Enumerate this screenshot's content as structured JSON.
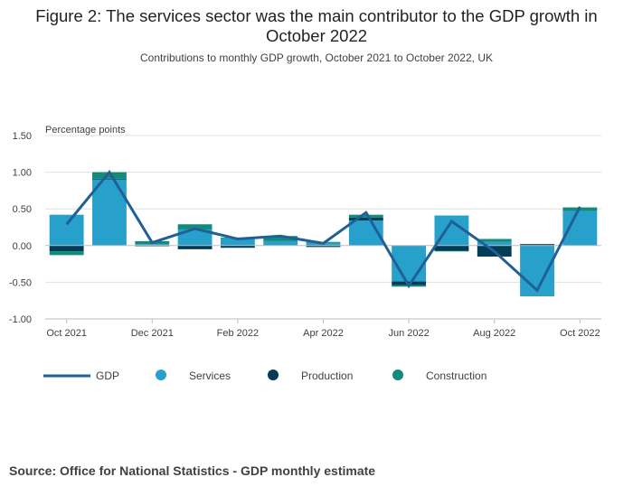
{
  "header": {
    "title": "Figure 2: The services sector was the main contributor to the GDP growth in October 2022",
    "subtitle": "Contributions to monthly GDP growth, October 2021 to October 2022, UK"
  },
  "footer": {
    "source": "Source: Office for National Statistics - GDP monthly estimate"
  },
  "colors": {
    "gdp": "#206095",
    "services": "#27a0cc",
    "production": "#003c57",
    "construction": "#118c7b",
    "grid": "#e0e0e0",
    "axis": "#bebebe"
  },
  "chart_data": {
    "type": "bar",
    "stacked": true,
    "categories": [
      "Oct 2021",
      "Nov 2021",
      "Dec 2021",
      "Jan 2022",
      "Feb 2022",
      "Mar 2022",
      "Apr 2022",
      "May 2022",
      "Jun 2022",
      "Jul 2022",
      "Aug 2022",
      "Sep 2022",
      "Oct 2022"
    ],
    "x_tick_labels": [
      "Oct 2021",
      "Dec 2021",
      "Feb 2022",
      "Apr 2022",
      "Jun 2022",
      "Aug 2022",
      "Oct 2022"
    ],
    "y_unit_label": "Percentage points",
    "ylim": [
      -1.0,
      1.5
    ],
    "yticks": [
      -1.0,
      -0.5,
      0.0,
      0.5,
      1.0,
      1.5
    ],
    "y_tick_labels": [
      "-1.00",
      "-0.50",
      "0.00",
      "0.50",
      "1.00",
      "1.50"
    ],
    "grid": true,
    "legend_position": "bottom",
    "series": [
      {
        "name": "Services",
        "kind": "bar",
        "color_key": "services",
        "values": [
          0.42,
          0.9,
          0.02,
          0.22,
          0.1,
          0.06,
          0.04,
          0.34,
          -0.49,
          0.41,
          0.05,
          -0.68,
          0.47
        ]
      },
      {
        "name": "Production",
        "kind": "bar",
        "color_key": "production",
        "values": [
          -0.08,
          0.01,
          -0.01,
          -0.05,
          -0.03,
          0.0,
          -0.02,
          0.04,
          -0.05,
          -0.07,
          -0.15,
          0.02,
          0.0
        ]
      },
      {
        "name": "Construction",
        "kind": "bar",
        "color_key": "construction",
        "values": [
          -0.05,
          0.09,
          0.04,
          0.07,
          0.01,
          0.07,
          0.01,
          0.04,
          -0.02,
          -0.01,
          0.04,
          -0.01,
          0.05
        ]
      },
      {
        "name": "GDP",
        "kind": "line",
        "color_key": "gdp",
        "values": [
          0.29,
          1.0,
          0.04,
          0.23,
          0.09,
          0.13,
          0.03,
          0.45,
          -0.55,
          0.33,
          -0.08,
          -0.61,
          0.53
        ]
      }
    ],
    "legend": [
      "GDP",
      "Services",
      "Production",
      "Construction"
    ]
  }
}
